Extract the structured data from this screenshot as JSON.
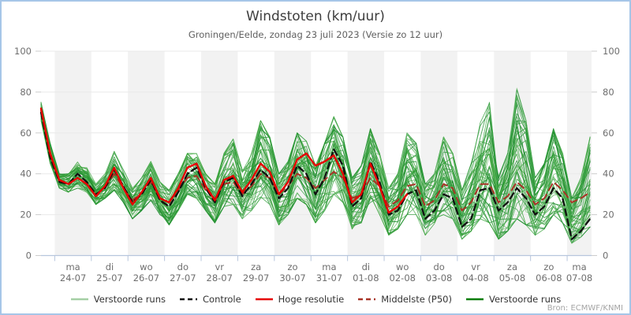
{
  "header": {
    "title": "Windstoten (km/uur)",
    "subtitle": "Groningen/Eelde, zondag 23 juli 2023 (Versie zo 12 uur)"
  },
  "source": "Bron: ECMWF/KNMI",
  "chart_data": {
    "type": "line",
    "title": "Windstoten (km/uur)",
    "subtitle": "Groningen/Eelde, zondag 23 juli 2023 (Versie zo 12 uur)",
    "ylabel": "km/uur",
    "ylim": [
      0,
      100
    ],
    "y_ticks": [
      0,
      20,
      40,
      60,
      80,
      100
    ],
    "grid": true,
    "legend_position": "bottom",
    "x_axis": {
      "total_hours": 361,
      "first_midnight_offset_hours": 9,
      "step_hours": 6,
      "days": [
        {
          "dow": "ma",
          "date": "24-07"
        },
        {
          "dow": "di",
          "date": "25-07"
        },
        {
          "dow": "wo",
          "date": "26-07"
        },
        {
          "dow": "do",
          "date": "27-07"
        },
        {
          "dow": "vr",
          "date": "28-07"
        },
        {
          "dow": "za",
          "date": "29-07"
        },
        {
          "dow": "zo",
          "date": "30-07"
        },
        {
          "dow": "ma",
          "date": "31-07"
        },
        {
          "dow": "di",
          "date": "01-08"
        },
        {
          "dow": "wo",
          "date": "02-08"
        },
        {
          "dow": "do",
          "date": "03-08"
        },
        {
          "dow": "vr",
          "date": "04-08"
        },
        {
          "dow": "za",
          "date": "05-08"
        },
        {
          "dow": "zo",
          "date": "06-08"
        },
        {
          "dow": "ma",
          "date": "07-08"
        }
      ]
    },
    "series": [
      {
        "name": "Verstoorde runs",
        "kind": "ensemble",
        "member_count": 50,
        "color_light": "#a5cfa5",
        "color_dark": "#067d06",
        "envelope_min": [
          66,
          45,
          33,
          31,
          33,
          31,
          25,
          28,
          32,
          26,
          18,
          22,
          27,
          20,
          15,
          22,
          30,
          28,
          22,
          16,
          24,
          25,
          18,
          22,
          28,
          25,
          15,
          20,
          28,
          25,
          16,
          22,
          30,
          26,
          13,
          16,
          26,
          20,
          10,
          13,
          20,
          20,
          10,
          13,
          20,
          18,
          8,
          12,
          18,
          16,
          8,
          12,
          18,
          15,
          10,
          13,
          20,
          16,
          6,
          9,
          14
        ],
        "envelope_max": [
          75,
          55,
          40,
          40,
          46,
          43,
          35,
          40,
          51,
          42,
          33,
          38,
          46,
          36,
          32,
          40,
          50,
          50,
          40,
          35,
          50,
          57,
          42,
          50,
          66,
          58,
          40,
          46,
          60,
          56,
          44,
          55,
          68,
          58,
          38,
          44,
          62,
          50,
          33,
          40,
          60,
          55,
          35,
          40,
          58,
          50,
          32,
          45,
          65,
          75,
          40,
          50,
          82,
          66,
          38,
          45,
          62,
          50,
          28,
          38,
          58
        ]
      },
      {
        "name": "Controle",
        "kind": "line",
        "style": "dashed",
        "color": "#111111",
        "values": [
          70,
          48,
          36,
          35,
          40,
          36,
          30,
          33,
          42,
          34,
          26,
          30,
          37,
          27,
          24,
          31,
          40,
          43,
          33,
          26,
          36,
          38,
          29,
          35,
          42,
          38,
          28,
          33,
          44,
          40,
          30,
          38,
          52,
          44,
          24,
          28,
          46,
          36,
          20,
          22,
          30,
          32,
          18,
          22,
          30,
          28,
          14,
          18,
          32,
          33,
          22,
          26,
          33,
          28,
          20,
          24,
          33,
          28,
          8,
          12,
          18
        ]
      },
      {
        "name": "Hoge resolutie",
        "kind": "line",
        "style": "solid",
        "color": "#e60000",
        "values": [
          72,
          50,
          37,
          35,
          38,
          35,
          29,
          34,
          43,
          33,
          25,
          31,
          38,
          28,
          26,
          33,
          43,
          45,
          34,
          27,
          37,
          39,
          31,
          37,
          45,
          41,
          30,
          36,
          47,
          50,
          44,
          46,
          49,
          40,
          26,
          30,
          45,
          34,
          21,
          24,
          30
        ]
      },
      {
        "name": "Middelste (P50)",
        "kind": "line",
        "style": "dashed",
        "color": "#a83326",
        "values": [
          71,
          49,
          36,
          35,
          38,
          35,
          30,
          33,
          40,
          33,
          27,
          31,
          36,
          28,
          26,
          32,
          38,
          39,
          32,
          28,
          35,
          36,
          30,
          34,
          40,
          38,
          30,
          34,
          40,
          38,
          33,
          37,
          41,
          38,
          28,
          30,
          38,
          34,
          24,
          27,
          34,
          35,
          24,
          27,
          35,
          33,
          22,
          26,
          35,
          35,
          26,
          29,
          36,
          32,
          25,
          28,
          36,
          32,
          26,
          28,
          31
        ]
      }
    ],
    "legend": [
      {
        "label": "Verstoorde runs",
        "color": "#a5cfa5",
        "style": "solid"
      },
      {
        "label": "Controle",
        "color": "#111111",
        "style": "dashed"
      },
      {
        "label": "Hoge resolutie",
        "color": "#e60000",
        "style": "solid"
      },
      {
        "label": "Middelste (P50)",
        "color": "#a83326",
        "style": "dashed"
      },
      {
        "label": "Verstoorde runs",
        "color": "#067d06",
        "style": "solid"
      }
    ],
    "colors": {
      "band_gray": "#f2f2f2",
      "grid": "#e9e9e9",
      "axis": "#b7c6dd",
      "y_tick": "#cccccc",
      "tick_label": "#6e6e6e",
      "ensemble_palette": [
        "#2f9e2f",
        "#3aa344",
        "#249232",
        "#4fae52",
        "#1d8c2d"
      ]
    }
  }
}
